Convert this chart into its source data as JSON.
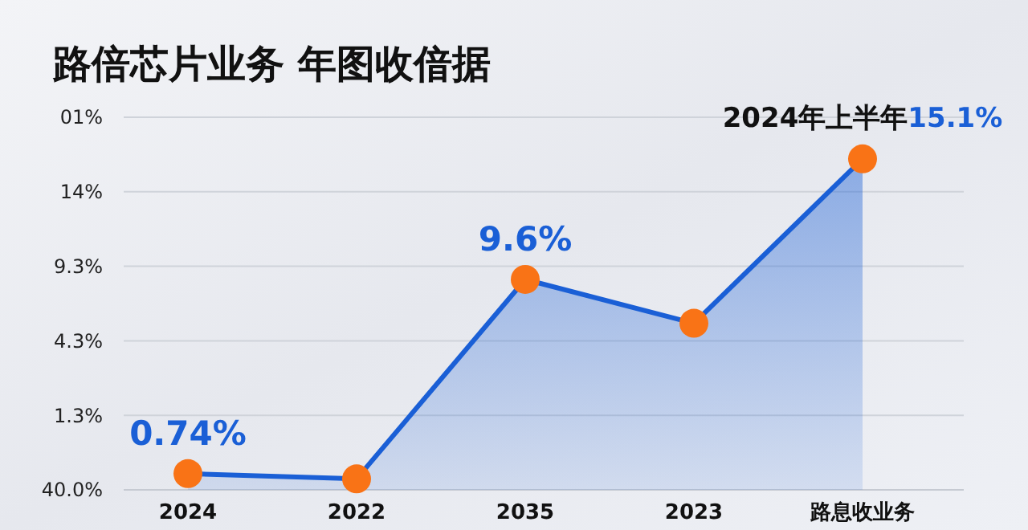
{
  "chart_data": {
    "type": "area",
    "title": "路倍芯片业务 年图收偣据",
    "ylim": [
      0,
      17
    ],
    "categories": [
      "2024",
      "2022",
      "2035",
      "2023",
      "路息收业务"
    ],
    "series": [
      {
        "color": "#1a5fd6",
        "values": [
          0.74,
          0.5,
          9.6,
          7.6,
          15.1
        ],
        "value_labels": [
          "0.74%",
          null,
          "9.6%",
          null,
          "15.1%"
        ]
      }
    ],
    "annotations": [
      {
        "text": "2024年上半年",
        "x": "路息收业务",
        "y": 15.1
      },
      "40.0%",
      "1.3%",
      "4.3%",
      "9.3%",
      "14%",
      "01%"
    ],
    "grid": "y",
    "marker": "circle",
    "line_style": "solid"
  }
}
